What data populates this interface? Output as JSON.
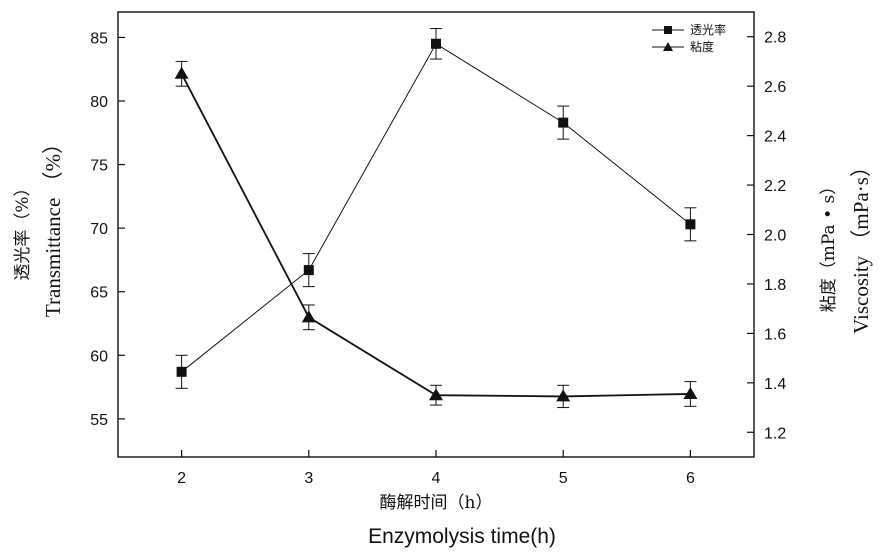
{
  "chart_data": {
    "type": "line",
    "x": [
      2,
      3,
      4,
      5,
      6
    ],
    "xlabel_cn": "酶解时间（h）",
    "xlabel_en": "Enzymolysis time(h)",
    "ylabel_left_cn": "透光率（%）",
    "ylabel_left_en": "Transmittance （%）",
    "ylabel_right_cn": "粘度（mPa • s）",
    "ylabel_right_en": "Viscosity （mPa·s）",
    "xlim": [
      1.5,
      6.5
    ],
    "ylim_left": [
      52,
      87
    ],
    "ylim_right": [
      1.1,
      2.9
    ],
    "xticks": [
      "2",
      "3",
      "4",
      "5",
      "6"
    ],
    "yticks_left": [
      "55",
      "60",
      "65",
      "70",
      "75",
      "80",
      "85"
    ],
    "yticks_right": [
      "1.2",
      "1.4",
      "1.6",
      "1.8",
      "2.0",
      "2.2",
      "2.4",
      "2.6",
      "2.8"
    ],
    "legend_position": "top-right",
    "grid": false,
    "series": [
      {
        "name": "透光率",
        "axis": "left",
        "marker": "square",
        "color": "#111111",
        "values": [
          58.7,
          66.7,
          84.5,
          78.3,
          70.3
        ],
        "errors": [
          1.3,
          1.3,
          1.2,
          1.3,
          1.3
        ]
      },
      {
        "name": "粘度",
        "axis": "right",
        "marker": "triangle",
        "color": "#111111",
        "values": [
          2.65,
          1.665,
          1.35,
          1.345,
          1.355
        ],
        "errors": [
          0.05,
          0.05,
          0.04,
          0.045,
          0.05
        ]
      }
    ]
  }
}
